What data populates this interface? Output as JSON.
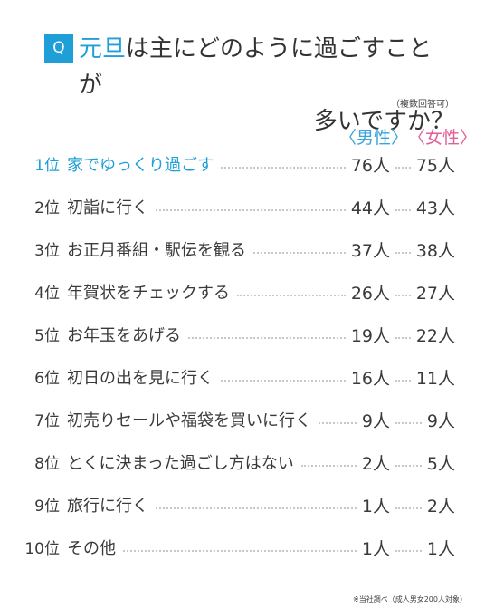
{
  "question": {
    "badge": "Q",
    "title_accent": "元旦",
    "title_rest1": "は主にどのように過ごすことが",
    "title_line2": "多いですか？",
    "note": "（複数回答可）"
  },
  "columns": {
    "male": "〈男性〉",
    "female": "〈女性〉"
  },
  "rows": [
    {
      "rank": "1位",
      "label": "家でゆっくり過ごす",
      "male": "76人",
      "female": "75人"
    },
    {
      "rank": "2位",
      "label": "初詣に行く",
      "male": "44人",
      "female": "43人"
    },
    {
      "rank": "3位",
      "label": "お正月番組・駅伝を観る",
      "male": "37人",
      "female": "38人"
    },
    {
      "rank": "4位",
      "label": "年賀状をチェックする",
      "male": "26人",
      "female": "27人"
    },
    {
      "rank": "5位",
      "label": "お年玉をあげる",
      "male": "19人",
      "female": "22人"
    },
    {
      "rank": "6位",
      "label": "初日の出を見に行く",
      "male": "16人",
      "female": "11人"
    },
    {
      "rank": "7位",
      "label": "初売りセールや福袋を買いに行く",
      "male": "9人",
      "female": "9人"
    },
    {
      "rank": "8位",
      "label": "とくに決まった過ごし方はない",
      "male": "2人",
      "female": "5人"
    },
    {
      "rank": "9位",
      "label": "旅行に行く",
      "male": "1人",
      "female": "2人"
    },
    {
      "rank": "10位",
      "label": "その他",
      "male": "1人",
      "female": "1人"
    }
  ],
  "footnote": "※当社調べ（成人男女200人対象）"
}
